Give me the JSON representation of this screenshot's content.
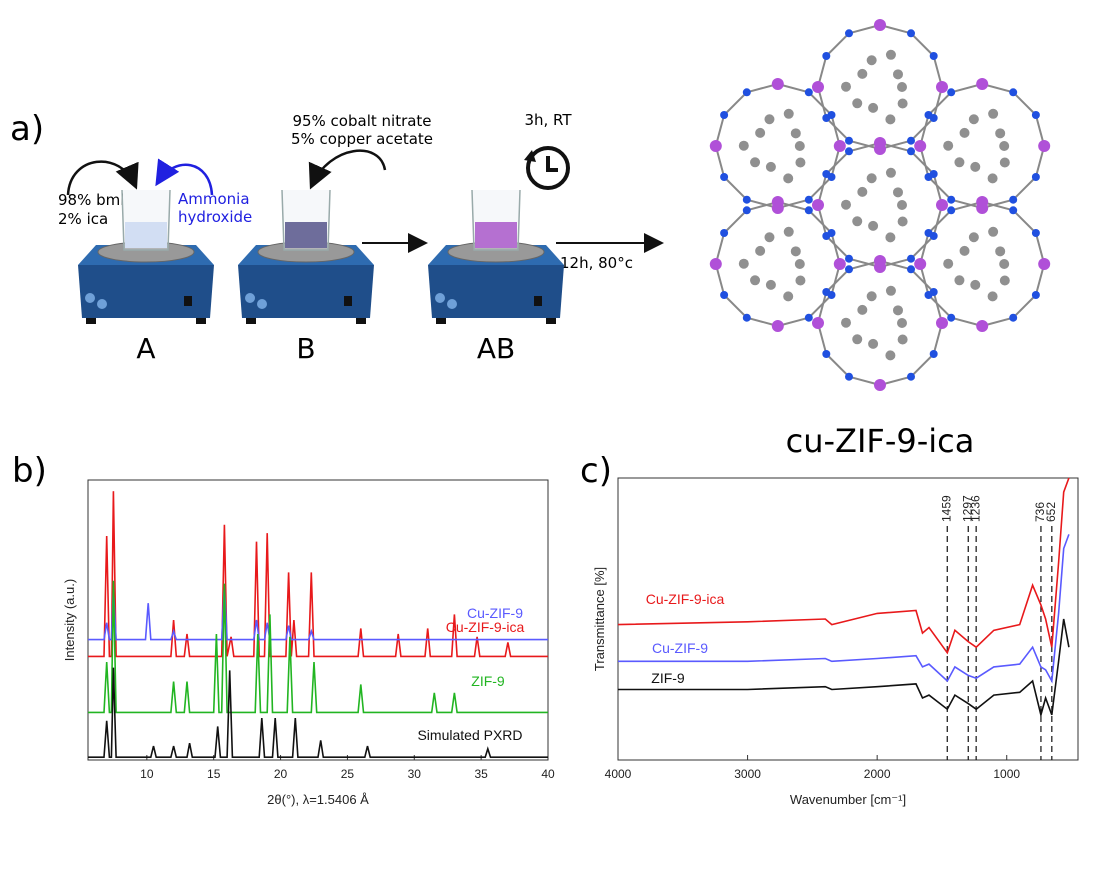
{
  "panels": {
    "a": "a)",
    "b": "b)",
    "c": "c)"
  },
  "scheme": {
    "A_left_1": "98% bml",
    "A_left_2": "2% ica",
    "A_right_1": "Ammonia",
    "A_right_2": "hydroxide",
    "B_top_1": "95% cobalt nitrate",
    "B_top_2": "5% copper acetate",
    "AB_top": "3h, RT",
    "arrow_label": "12h, 80°c",
    "labels": [
      "A",
      "B",
      "AB"
    ],
    "product": "cu-ZIF-9-ica"
  },
  "chart_data": [
    {
      "type": "line",
      "x_label": "2θ(°), λ=1.5406 Å",
      "y_label": "Intensity (a.u.)",
      "xlim": [
        5.6,
        40
      ],
      "xticks": [
        10,
        15,
        20,
        25,
        30,
        35,
        40
      ],
      "ylim": [
        0,
        100
      ],
      "series": [
        {
          "name": "Cu-ZIF-9-ica",
          "color": "#e8191b",
          "x": [
            5.6,
            6.8,
            7.0,
            7.2,
            7.35,
            7.5,
            7.7,
            11.8,
            12.0,
            12.2,
            12.8,
            13.0,
            13.2,
            15.6,
            15.8,
            16.0,
            16.3,
            16.5,
            18.0,
            18.2,
            18.4,
            18.8,
            19.0,
            19.2,
            20.4,
            20.6,
            20.8,
            21.0,
            21.2,
            22.1,
            22.3,
            22.5,
            25.8,
            26.0,
            26.2,
            28.6,
            28.8,
            29.0,
            30.8,
            31.0,
            31.2,
            32.8,
            33.0,
            33.2,
            34.5,
            34.7,
            34.9,
            36.8,
            37.0,
            37.2,
            40
          ],
          "values": [
            37,
            37,
            80,
            37,
            37,
            96,
            37,
            37,
            50,
            37,
            37,
            45,
            37,
            37,
            84,
            37,
            44,
            37,
            37,
            78,
            37,
            37,
            81,
            37,
            37,
            67,
            37,
            50,
            37,
            37,
            67,
            37,
            37,
            47,
            37,
            37,
            45,
            37,
            37,
            47,
            37,
            37,
            52,
            37,
            37,
            44,
            37,
            37,
            42,
            37,
            37
          ]
        },
        {
          "name": "Cu-ZIF-9",
          "color": "#5a5aff",
          "x": [
            5.6,
            6.8,
            7.0,
            7.2,
            7.35,
            7.5,
            7.7,
            9.9,
            10.1,
            10.3,
            11.8,
            12.0,
            12.2,
            15.6,
            15.8,
            16.0,
            18.0,
            18.2,
            18.4,
            18.8,
            19.0,
            19.2,
            20.4,
            20.6,
            20.8,
            22.1,
            22.3,
            22.5,
            40
          ],
          "values": [
            43,
            43,
            49,
            43,
            43,
            61,
            43,
            43,
            56,
            43,
            43,
            46,
            43,
            43,
            62,
            43,
            43,
            50,
            43,
            43,
            49,
            43,
            43,
            48,
            43,
            43,
            46,
            43,
            43
          ]
        },
        {
          "name": "ZIF-9",
          "color": "#22b522",
          "x": [
            5.6,
            6.8,
            7.0,
            7.2,
            7.35,
            7.5,
            7.7,
            11.8,
            12.0,
            12.2,
            12.8,
            13.0,
            13.2,
            15.0,
            15.2,
            15.4,
            15.6,
            15.8,
            16.0,
            18.1,
            18.3,
            18.5,
            19.0,
            19.2,
            19.4,
            20.5,
            20.7,
            20.9,
            22.3,
            22.5,
            22.7,
            25.8,
            26.0,
            26.2,
            31.3,
            31.5,
            31.7,
            32.8,
            33.0,
            33.2,
            40
          ],
          "values": [
            17,
            17,
            35,
            17,
            17,
            64,
            17,
            17,
            28,
            17,
            17,
            28,
            17,
            17,
            45,
            17,
            17,
            63,
            17,
            17,
            45,
            17,
            17,
            52,
            17,
            17,
            44,
            17,
            17,
            35,
            17,
            17,
            27,
            17,
            17,
            24,
            17,
            17,
            24,
            17,
            17
          ]
        },
        {
          "name": "Simulated PXRD",
          "color": "#111111",
          "x": [
            5.6,
            6.8,
            7.0,
            7.2,
            7.35,
            7.5,
            7.7,
            10.3,
            10.5,
            10.7,
            11.8,
            12.0,
            12.2,
            13.0,
            13.2,
            13.4,
            15.1,
            15.3,
            15.5,
            16.0,
            16.2,
            16.4,
            18.4,
            18.6,
            18.8,
            19.4,
            19.6,
            19.8,
            20.9,
            21.1,
            21.3,
            22.8,
            23.0,
            23.2,
            26.3,
            26.5,
            26.7,
            35.3,
            35.5,
            35.7,
            40
          ],
          "values": [
            1,
            1,
            14,
            1,
            1,
            33,
            1,
            1,
            5,
            1,
            1,
            5,
            1,
            1,
            6,
            1,
            1,
            12,
            1,
            1,
            32,
            1,
            1,
            15,
            1,
            1,
            15,
            1,
            1,
            15,
            1,
            1,
            7,
            1,
            1,
            5,
            1,
            1,
            4,
            1,
            1
          ]
        }
      ]
    },
    {
      "type": "line",
      "x_label": "Wavenumber [cm⁻¹]",
      "y_label": "Transmittance [%]",
      "xlim": [
        4000,
        450
      ],
      "xticks": [
        4000,
        3000,
        2000,
        1000
      ],
      "ylim": [
        0,
        100
      ],
      "x": [
        4000,
        3000,
        2400,
        2350,
        2000,
        1700,
        1650,
        1600,
        1459,
        1400,
        1297,
        1236,
        1100,
        900,
        800,
        736,
        700,
        652,
        600,
        560,
        520
      ],
      "series": [
        {
          "name": "Cu-ZIF-9-ica",
          "color": "#e8191b",
          "values": [
            48,
            49,
            50,
            48,
            52,
            53,
            45,
            47,
            38,
            46,
            42,
            40,
            46,
            48,
            62,
            55,
            50,
            40,
            70,
            95,
            100
          ]
        },
        {
          "name": "Cu-ZIF-9",
          "color": "#5a5aff",
          "values": [
            35,
            35,
            36,
            35,
            36,
            37,
            33,
            34,
            28,
            33,
            30,
            29,
            33,
            34,
            40,
            33,
            32,
            28,
            52,
            75,
            80
          ]
        },
        {
          "name": "ZIF-9",
          "color": "#111111",
          "values": [
            25,
            25,
            26,
            25,
            26,
            27,
            22,
            23,
            18,
            23,
            20,
            18,
            23,
            24,
            28,
            16,
            22,
            16,
            35,
            50,
            40
          ]
        }
      ],
      "annotations": [
        1459,
        1297,
        1236,
        736,
        652
      ]
    }
  ]
}
